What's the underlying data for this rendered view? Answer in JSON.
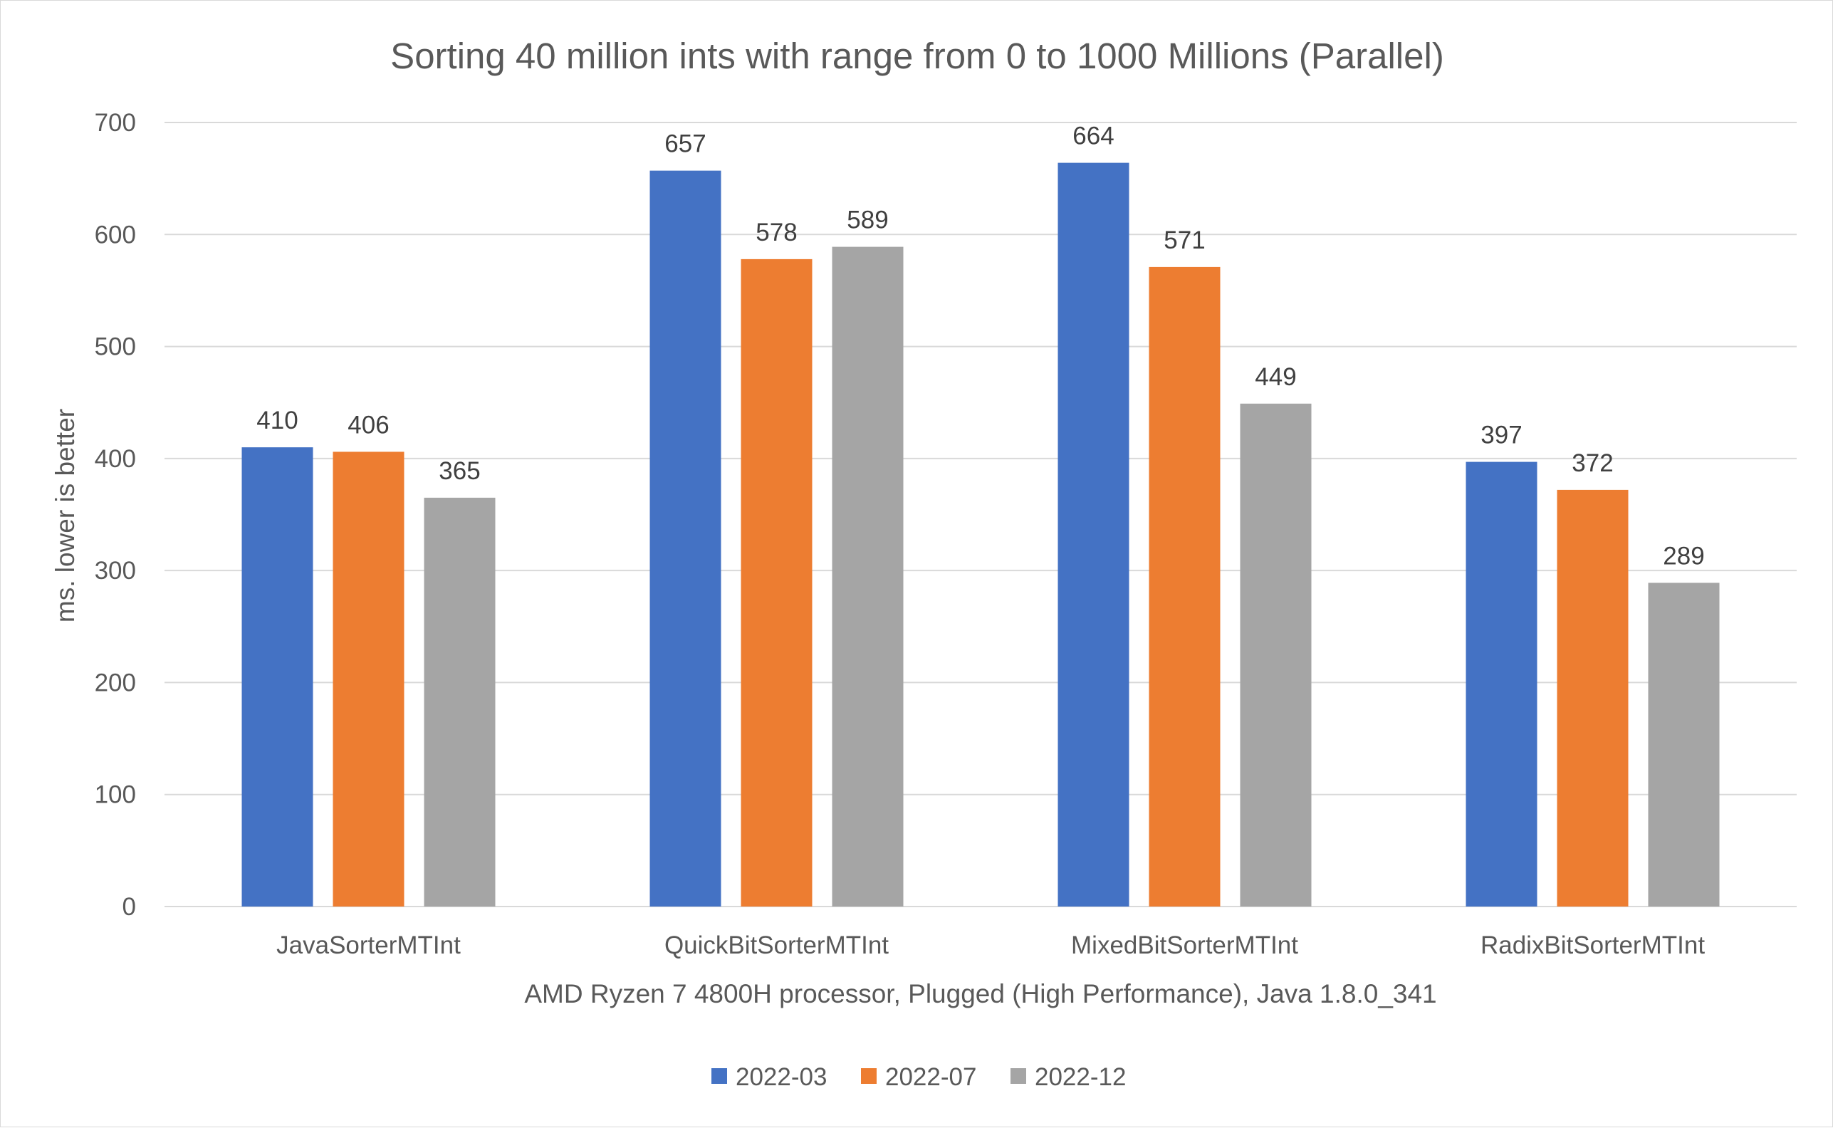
{
  "chart_data": {
    "type": "bar",
    "title": "Sorting 40 million ints with range from 0 to 1000 Millions (Parallel)",
    "xlabel": "AMD Ryzen 7 4800H processor, Plugged (High Performance), Java 1.8.0_341",
    "ylabel": "ms. lower is better",
    "ylim": [
      0,
      700
    ],
    "yticks": [
      0,
      100,
      200,
      300,
      400,
      500,
      600,
      700
    ],
    "grid": true,
    "legend_position": "bottom",
    "categories": [
      "JavaSorterMTInt",
      "QuickBitSorterMTInt",
      "MixedBitSorterMTInt",
      "RadixBitSorterMTInt"
    ],
    "series": [
      {
        "name": "2022-03",
        "color": "#4472C4",
        "values": [
          410,
          657,
          664,
          397
        ]
      },
      {
        "name": "2022-07",
        "color": "#ED7D31",
        "values": [
          406,
          578,
          571,
          372
        ]
      },
      {
        "name": "2022-12",
        "color": "#A5A5A5",
        "values": [
          365,
          589,
          449,
          289
        ]
      }
    ]
  }
}
